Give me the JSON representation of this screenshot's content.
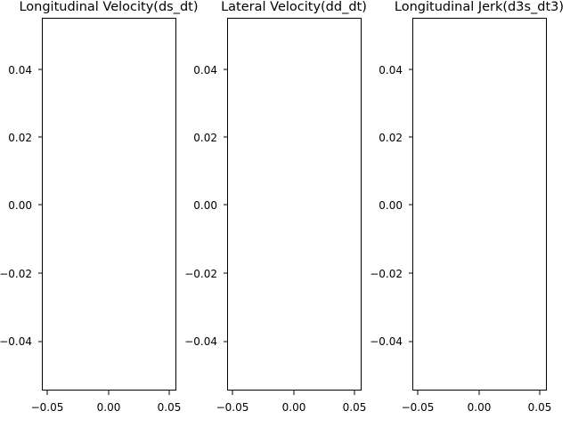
{
  "chart_data": [
    {
      "type": "line",
      "title": "Longitudinal Velocity(ds_dt)",
      "xlabel": "",
      "ylabel": "",
      "x": [],
      "y": [],
      "xlim": [
        -0.055,
        0.055
      ],
      "ylim": [
        -0.055,
        0.055
      ],
      "xticks": [
        "−0.05",
        "0.00",
        "0.05"
      ],
      "yticks": [
        "−0.04",
        "−0.02",
        "0.00",
        "0.02",
        "0.04"
      ],
      "grid": false
    },
    {
      "type": "line",
      "title": "Lateral Velocity(dd_dt)",
      "xlabel": "",
      "ylabel": "",
      "x": [],
      "y": [],
      "xlim": [
        -0.055,
        0.055
      ],
      "ylim": [
        -0.055,
        0.055
      ],
      "xticks": [
        "−0.05",
        "0.00",
        "0.05"
      ],
      "yticks": [
        "−0.04",
        "−0.02",
        "0.00",
        "0.02",
        "0.04"
      ],
      "grid": false
    },
    {
      "type": "line",
      "title": "Longitudinal Jerk(d3s_dt3)",
      "xlabel": "",
      "ylabel": "",
      "x": [],
      "y": [],
      "xlim": [
        -0.055,
        0.055
      ],
      "ylim": [
        -0.055,
        0.055
      ],
      "xticks": [
        "−0.05",
        "0.00",
        "0.05"
      ],
      "yticks": [
        "−0.04",
        "−0.02",
        "0.00",
        "0.02",
        "0.04"
      ],
      "grid": false
    }
  ]
}
